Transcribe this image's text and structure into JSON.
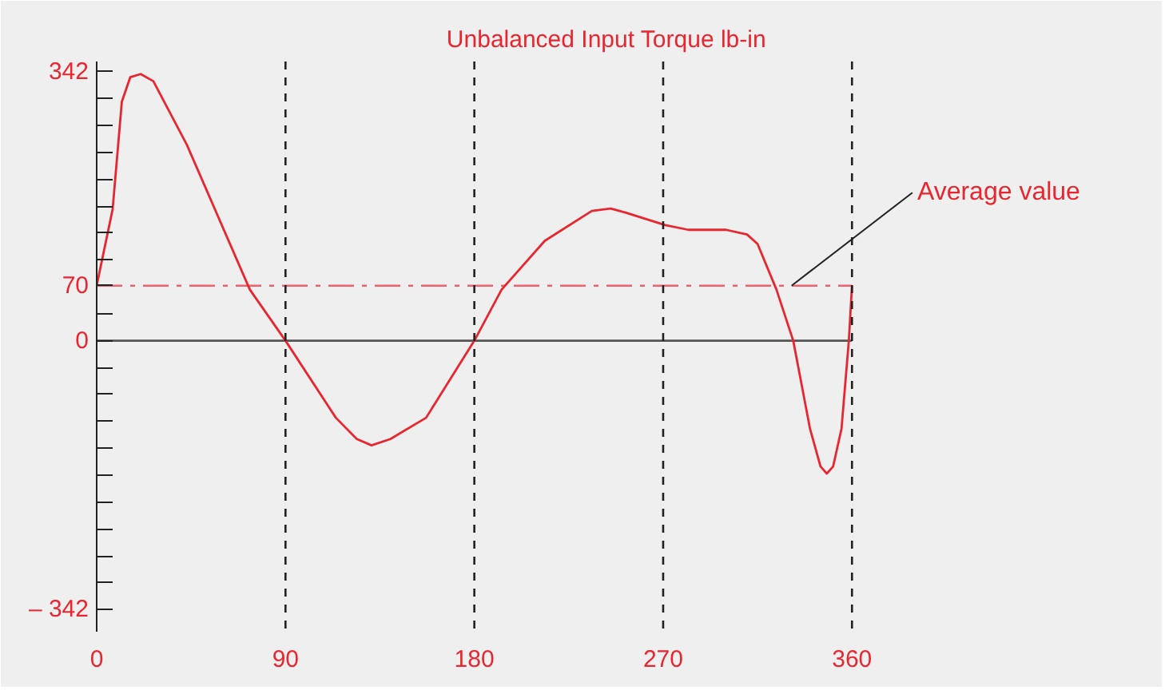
{
  "chart_data": {
    "type": "line",
    "title": "Unbalanced  Input Torque      lb-in",
    "x": [
      0,
      7.6,
      12,
      16,
      21,
      27,
      43,
      73,
      90,
      114,
      124,
      131,
      140,
      157,
      180,
      193,
      213.6,
      236,
      245,
      252,
      271,
      282,
      300,
      310,
      315,
      324,
      332,
      340,
      345,
      348,
      351,
      355,
      358.5,
      360
    ],
    "series": [
      {
        "color": "#e8262f",
        "values": [
          70,
          167,
          304,
          335,
          339,
          330,
          249,
          65,
          0,
          -98,
          -125,
          -133,
          -125,
          -98,
          0,
          65,
          127,
          165,
          168,
          163,
          147,
          141,
          141,
          135,
          123,
          65,
          0,
          -112,
          -160,
          -169,
          -160,
          -112,
          0,
          70
        ]
      }
    ],
    "xlim": [
      0,
      505
    ],
    "ylim": [
      -370,
      355
    ],
    "xticks": [
      0,
      90,
      180,
      270,
      360
    ],
    "yticks": [
      {
        "value": 342,
        "label": "342"
      },
      {
        "value": 307.8,
        "label": null
      },
      {
        "value": 273.6,
        "label": null
      },
      {
        "value": 239.4,
        "label": null
      },
      {
        "value": 205.2,
        "label": null
      },
      {
        "value": 171,
        "label": null
      },
      {
        "value": 136.8,
        "label": null
      },
      {
        "value": 102.6,
        "label": null
      },
      {
        "value": 70,
        "label": "70"
      },
      {
        "value": 34.2,
        "label": null
      },
      {
        "value": 0,
        "label": "0"
      },
      {
        "value": -34.2,
        "label": null
      },
      {
        "value": -68.4,
        "label": null
      },
      {
        "value": -102.6,
        "label": null
      },
      {
        "value": -136.8,
        "label": null
      },
      {
        "value": -171,
        "label": null
      },
      {
        "value": -205.2,
        "label": null
      },
      {
        "value": -239.4,
        "label": null
      },
      {
        "value": -273.6,
        "label": null
      },
      {
        "value": -307.8,
        "label": null
      },
      {
        "value": -342,
        "label": "– 342"
      }
    ],
    "ref_lines": [
      {
        "axis": "x",
        "value": 90,
        "color": "#222222",
        "line_style": "dashed"
      },
      {
        "axis": "x",
        "value": 180,
        "color": "#222222",
        "line_style": "dashed"
      },
      {
        "axis": "x",
        "value": 270,
        "color": "#222222",
        "line_style": "dashed"
      },
      {
        "axis": "x",
        "value": 360,
        "color": "#222222",
        "line_style": "dashed"
      },
      {
        "axis": "y",
        "value": 0,
        "color": "#555555",
        "line_style": "solid"
      },
      {
        "axis": "y",
        "value": 70,
        "color": "#f0606a",
        "line_style": "dashdot",
        "label": "Average value"
      }
    ],
    "grid": false,
    "marker": "none",
    "line_style": "solid"
  }
}
